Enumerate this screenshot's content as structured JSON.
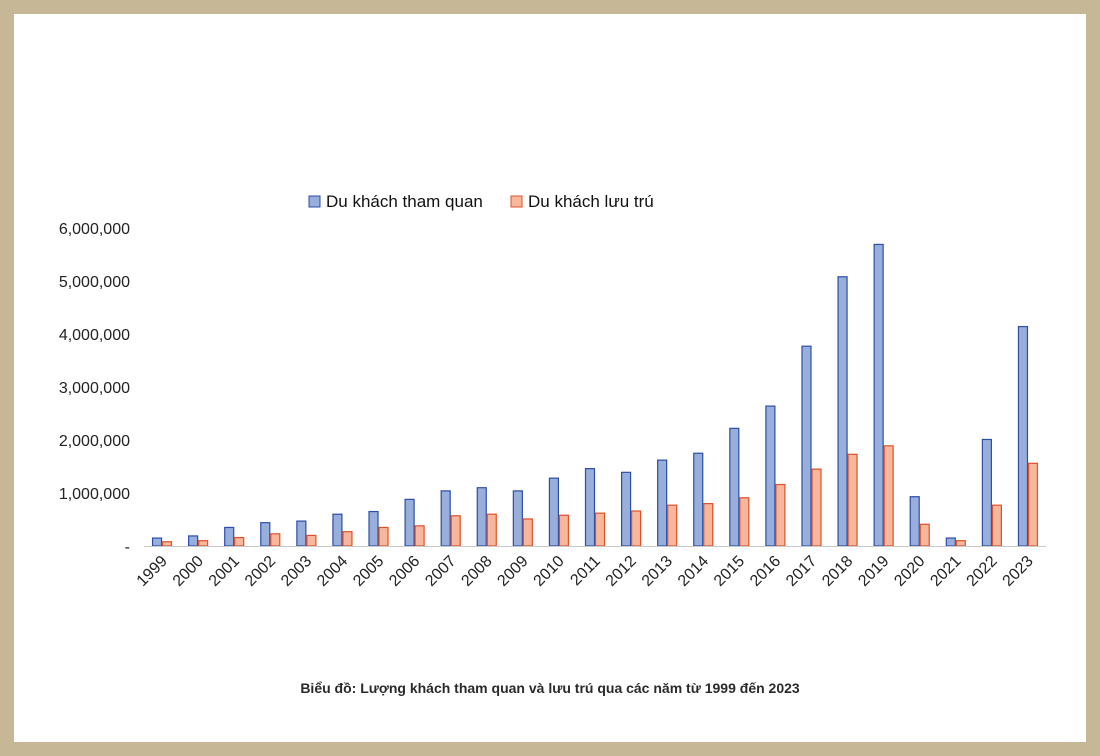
{
  "caption": "Biểu đồ: Lượng khách tham quan và lưu trú qua các năm từ 1999 đến 2023",
  "chart_data": {
    "type": "bar",
    "title": "",
    "xlabel": "",
    "ylabel": "",
    "ylim": [
      0,
      6000000
    ],
    "y_ticks": [
      0,
      1000000,
      2000000,
      3000000,
      4000000,
      5000000,
      6000000
    ],
    "y_tick_labels": [
      "-",
      "1,000,000",
      "2,000,000",
      "3,000,000",
      "4,000,000",
      "5,000,000",
      "6,000,000"
    ],
    "grid": false,
    "legend_position": "top-center",
    "categories": [
      "1999",
      "2000",
      "2001",
      "2002",
      "2003",
      "2004",
      "2005",
      "2006",
      "2007",
      "2008",
      "2009",
      "2010",
      "2011",
      "2012",
      "2013",
      "2014",
      "2015",
      "2016",
      "2017",
      "2018",
      "2019",
      "2020",
      "2021",
      "2022",
      "2023"
    ],
    "series": [
      {
        "name": "Du khách tham quan",
        "fill": "#98aedb",
        "stroke": "#2d4ea8",
        "values": [
          150000,
          190000,
          350000,
          440000,
          470000,
          600000,
          650000,
          880000,
          1040000,
          1100000,
          1040000,
          1280000,
          1460000,
          1390000,
          1620000,
          1750000,
          2220000,
          2640000,
          3770000,
          5080000,
          5690000,
          930000,
          150000,
          2010000,
          4140000
        ]
      },
      {
        "name": "Du khách lưu trú",
        "fill": "#f6b79a",
        "stroke": "#e0502a",
        "values": [
          80000,
          100000,
          160000,
          230000,
          200000,
          270000,
          350000,
          380000,
          570000,
          600000,
          510000,
          580000,
          620000,
          660000,
          770000,
          800000,
          910000,
          1160000,
          1450000,
          1730000,
          1890000,
          410000,
          100000,
          770000,
          1560000
        ]
      }
    ]
  }
}
